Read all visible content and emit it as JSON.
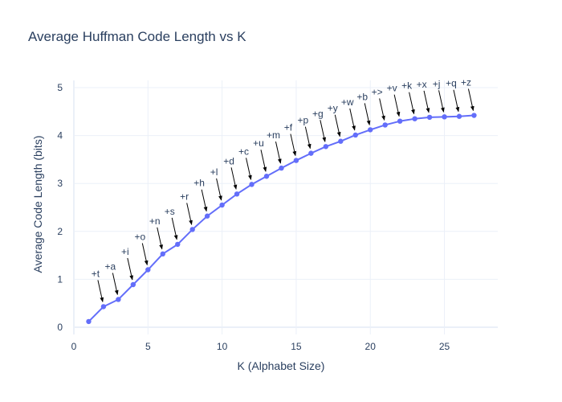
{
  "chart_data": {
    "type": "line",
    "title": "Average Huffman Code Length vs K",
    "xlabel": "K (Alphabet Size)",
    "ylabel": "Average Code Length (bits)",
    "xlim": [
      0,
      28.6
    ],
    "ylim": [
      -0.15,
      5.15
    ],
    "xticks": [
      0,
      5,
      10,
      15,
      20,
      25
    ],
    "yticks": [
      0,
      1,
      2,
      3,
      4,
      5
    ],
    "grid": true,
    "line_color": "#636efa",
    "annotation_color": "#000000",
    "series": [
      {
        "x": [
          1,
          2,
          3,
          4,
          5,
          6,
          7,
          8,
          9,
          10,
          11,
          12,
          13,
          14,
          15,
          16,
          17,
          18,
          19,
          20,
          21,
          22,
          23,
          24,
          25,
          26,
          27
        ],
        "values": [
          0.12,
          0.43,
          0.58,
          0.89,
          1.2,
          1.53,
          1.73,
          2.04,
          2.32,
          2.55,
          2.78,
          2.98,
          3.15,
          3.32,
          3.48,
          3.63,
          3.77,
          3.88,
          4.01,
          4.12,
          4.22,
          4.3,
          4.35,
          4.38,
          4.39,
          4.4,
          4.42
        ]
      }
    ],
    "annotations": [
      {
        "x": 2,
        "text": "+t"
      },
      {
        "x": 3,
        "text": "+a"
      },
      {
        "x": 4,
        "text": "+i"
      },
      {
        "x": 5,
        "text": "+o"
      },
      {
        "x": 6,
        "text": "+n"
      },
      {
        "x": 7,
        "text": "+s"
      },
      {
        "x": 8,
        "text": "+r"
      },
      {
        "x": 9,
        "text": "+h"
      },
      {
        "x": 10,
        "text": "+l"
      },
      {
        "x": 11,
        "text": "+d"
      },
      {
        "x": 12,
        "text": "+c"
      },
      {
        "x": 13,
        "text": "+u"
      },
      {
        "x": 14,
        "text": "+m"
      },
      {
        "x": 15,
        "text": "+f"
      },
      {
        "x": 16,
        "text": "+p"
      },
      {
        "x": 17,
        "text": "+g"
      },
      {
        "x": 18,
        "text": "+y"
      },
      {
        "x": 19,
        "text": "+w"
      },
      {
        "x": 20,
        "text": "+b"
      },
      {
        "x": 21,
        "text": "+>"
      },
      {
        "x": 22,
        "text": "+v"
      },
      {
        "x": 23,
        "text": "+k"
      },
      {
        "x": 24,
        "text": "+x"
      },
      {
        "x": 25,
        "text": "+j"
      },
      {
        "x": 26,
        "text": "+q"
      },
      {
        "x": 27,
        "text": "+z"
      }
    ]
  }
}
